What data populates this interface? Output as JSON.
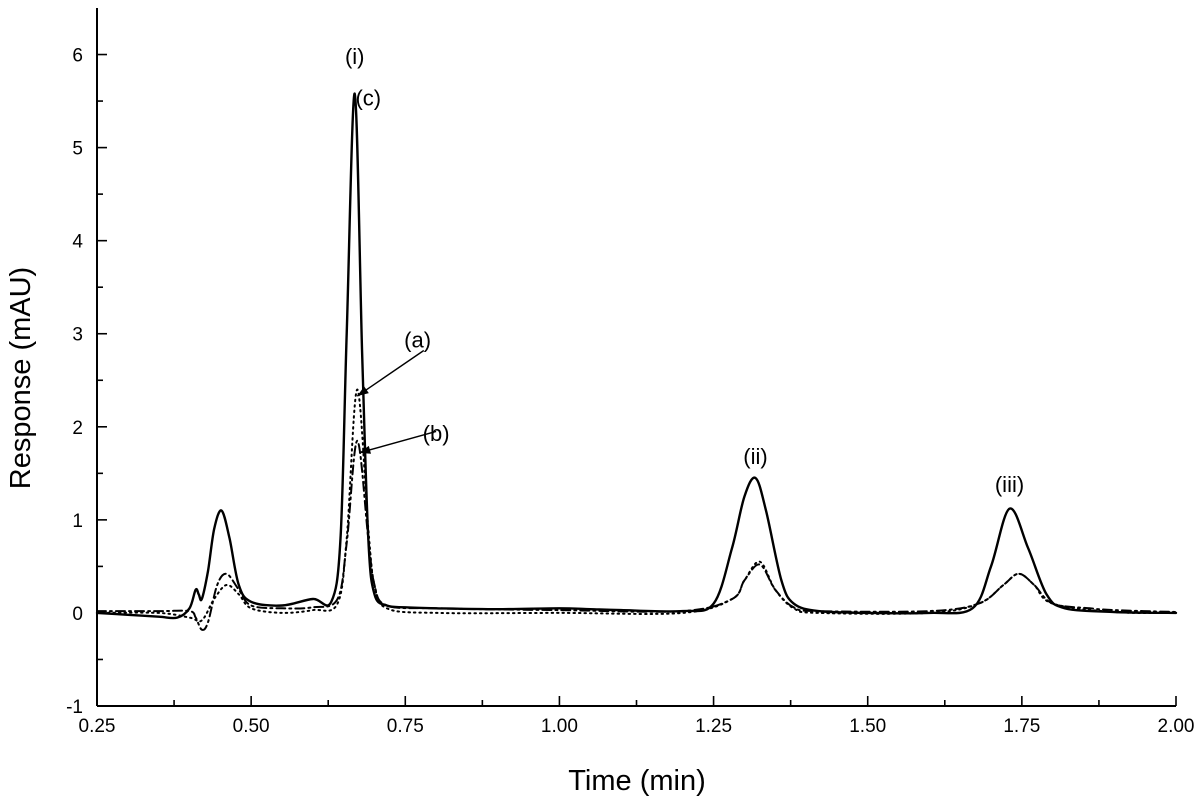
{
  "chart_data": {
    "type": "line",
    "title": "",
    "xlabel": "Time (min)",
    "ylabel": "Response (mAU)",
    "xlim": [
      0.25,
      2.0
    ],
    "ylim": [
      -1,
      6.5
    ],
    "x_ticks": [
      "0.25",
      "0.50",
      "0.75",
      "1.00",
      "1.25",
      "1.50",
      "1.75",
      "2.00"
    ],
    "y_ticks": [
      "-1",
      "0",
      "1",
      "2",
      "3",
      "4",
      "5",
      "6"
    ],
    "grid": false,
    "legend": "none",
    "series": [
      {
        "label": "(c)",
        "style": "solid",
        "x": [
          0.25,
          0.3,
          0.35,
          0.38,
          0.4,
          0.41,
          0.415,
          0.42,
          0.43,
          0.44,
          0.452,
          0.465,
          0.48,
          0.5,
          0.55,
          0.6,
          0.63,
          0.645,
          0.655,
          0.668,
          0.68,
          0.69,
          0.7,
          0.72,
          0.75,
          0.8,
          0.9,
          1.0,
          1.05,
          1.1,
          1.2,
          1.25,
          1.28,
          1.3,
          1.318,
          1.335,
          1.36,
          1.38,
          1.42,
          1.5,
          1.6,
          1.67,
          1.7,
          1.73,
          1.76,
          1.79,
          1.82,
          1.9,
          2.0
        ],
        "y": [
          0.0,
          -0.02,
          -0.04,
          -0.05,
          0.05,
          0.25,
          0.2,
          0.15,
          0.45,
          0.9,
          1.1,
          0.8,
          0.3,
          0.12,
          0.08,
          0.15,
          0.12,
          0.8,
          3.0,
          5.58,
          2.8,
          0.8,
          0.2,
          0.08,
          0.06,
          0.05,
          0.04,
          0.05,
          0.04,
          0.03,
          0.02,
          0.1,
          0.7,
          1.25,
          1.45,
          1.1,
          0.35,
          0.1,
          0.02,
          0.0,
          0.0,
          0.05,
          0.5,
          1.12,
          0.7,
          0.2,
          0.05,
          0.01,
          0.0
        ]
      },
      {
        "label": "(a)",
        "style": "dotted",
        "x": [
          0.25,
          0.35,
          0.4,
          0.42,
          0.44,
          0.46,
          0.48,
          0.5,
          0.55,
          0.6,
          0.64,
          0.655,
          0.672,
          0.69,
          0.7,
          0.72,
          0.8,
          1.0,
          1.2,
          1.28,
          1.3,
          1.325,
          1.35,
          1.38,
          1.42,
          1.6,
          1.68,
          1.72,
          1.745,
          1.77,
          1.8,
          1.9,
          2.0
        ],
        "y": [
          0.0,
          0.0,
          -0.05,
          -0.08,
          0.15,
          0.3,
          0.2,
          0.05,
          0.0,
          0.03,
          0.1,
          0.8,
          2.4,
          0.9,
          0.3,
          0.05,
          0.0,
          0.0,
          0.0,
          0.15,
          0.35,
          0.55,
          0.25,
          0.05,
          0.0,
          0.0,
          0.1,
          0.3,
          0.42,
          0.3,
          0.1,
          0.01,
          0.0
        ]
      },
      {
        "label": "(b)",
        "style": "dashdot",
        "x": [
          0.25,
          0.35,
          0.4,
          0.41,
          0.42,
          0.43,
          0.445,
          0.46,
          0.48,
          0.5,
          0.55,
          0.6,
          0.64,
          0.655,
          0.672,
          0.69,
          0.7,
          0.72,
          0.8,
          1.0,
          1.2,
          1.28,
          1.3,
          1.325,
          1.35,
          1.38,
          1.42,
          1.6,
          1.68,
          1.72,
          1.745,
          1.77,
          1.8,
          1.86,
          1.9,
          2.0
        ],
        "y": [
          0.02,
          0.02,
          0.02,
          -0.05,
          -0.18,
          -0.1,
          0.3,
          0.42,
          0.25,
          0.08,
          0.05,
          0.06,
          0.15,
          0.75,
          1.85,
          0.8,
          0.3,
          0.08,
          0.05,
          0.03,
          0.02,
          0.15,
          0.35,
          0.52,
          0.25,
          0.06,
          0.02,
          0.02,
          0.1,
          0.3,
          0.42,
          0.3,
          0.1,
          0.05,
          0.03,
          0.01
        ]
      }
    ],
    "annotations": [
      {
        "text": "(i)",
        "x": 0.668,
        "y": 5.9
      },
      {
        "text": "(c)",
        "x": 0.69,
        "y": 5.45
      },
      {
        "text": "(a)",
        "x": 0.77,
        "y": 2.85
      },
      {
        "text": "(b)",
        "x": 0.8,
        "y": 1.85
      },
      {
        "text": "(ii)",
        "x": 1.318,
        "y": 1.6
      },
      {
        "text": "(iii)",
        "x": 1.73,
        "y": 1.3
      }
    ],
    "arrows": [
      {
        "from": [
          0.78,
          2.82
        ],
        "to": [
          0.672,
          2.33
        ]
      },
      {
        "from": [
          0.8,
          1.95
        ],
        "to": [
          0.675,
          1.72
        ]
      }
    ]
  }
}
